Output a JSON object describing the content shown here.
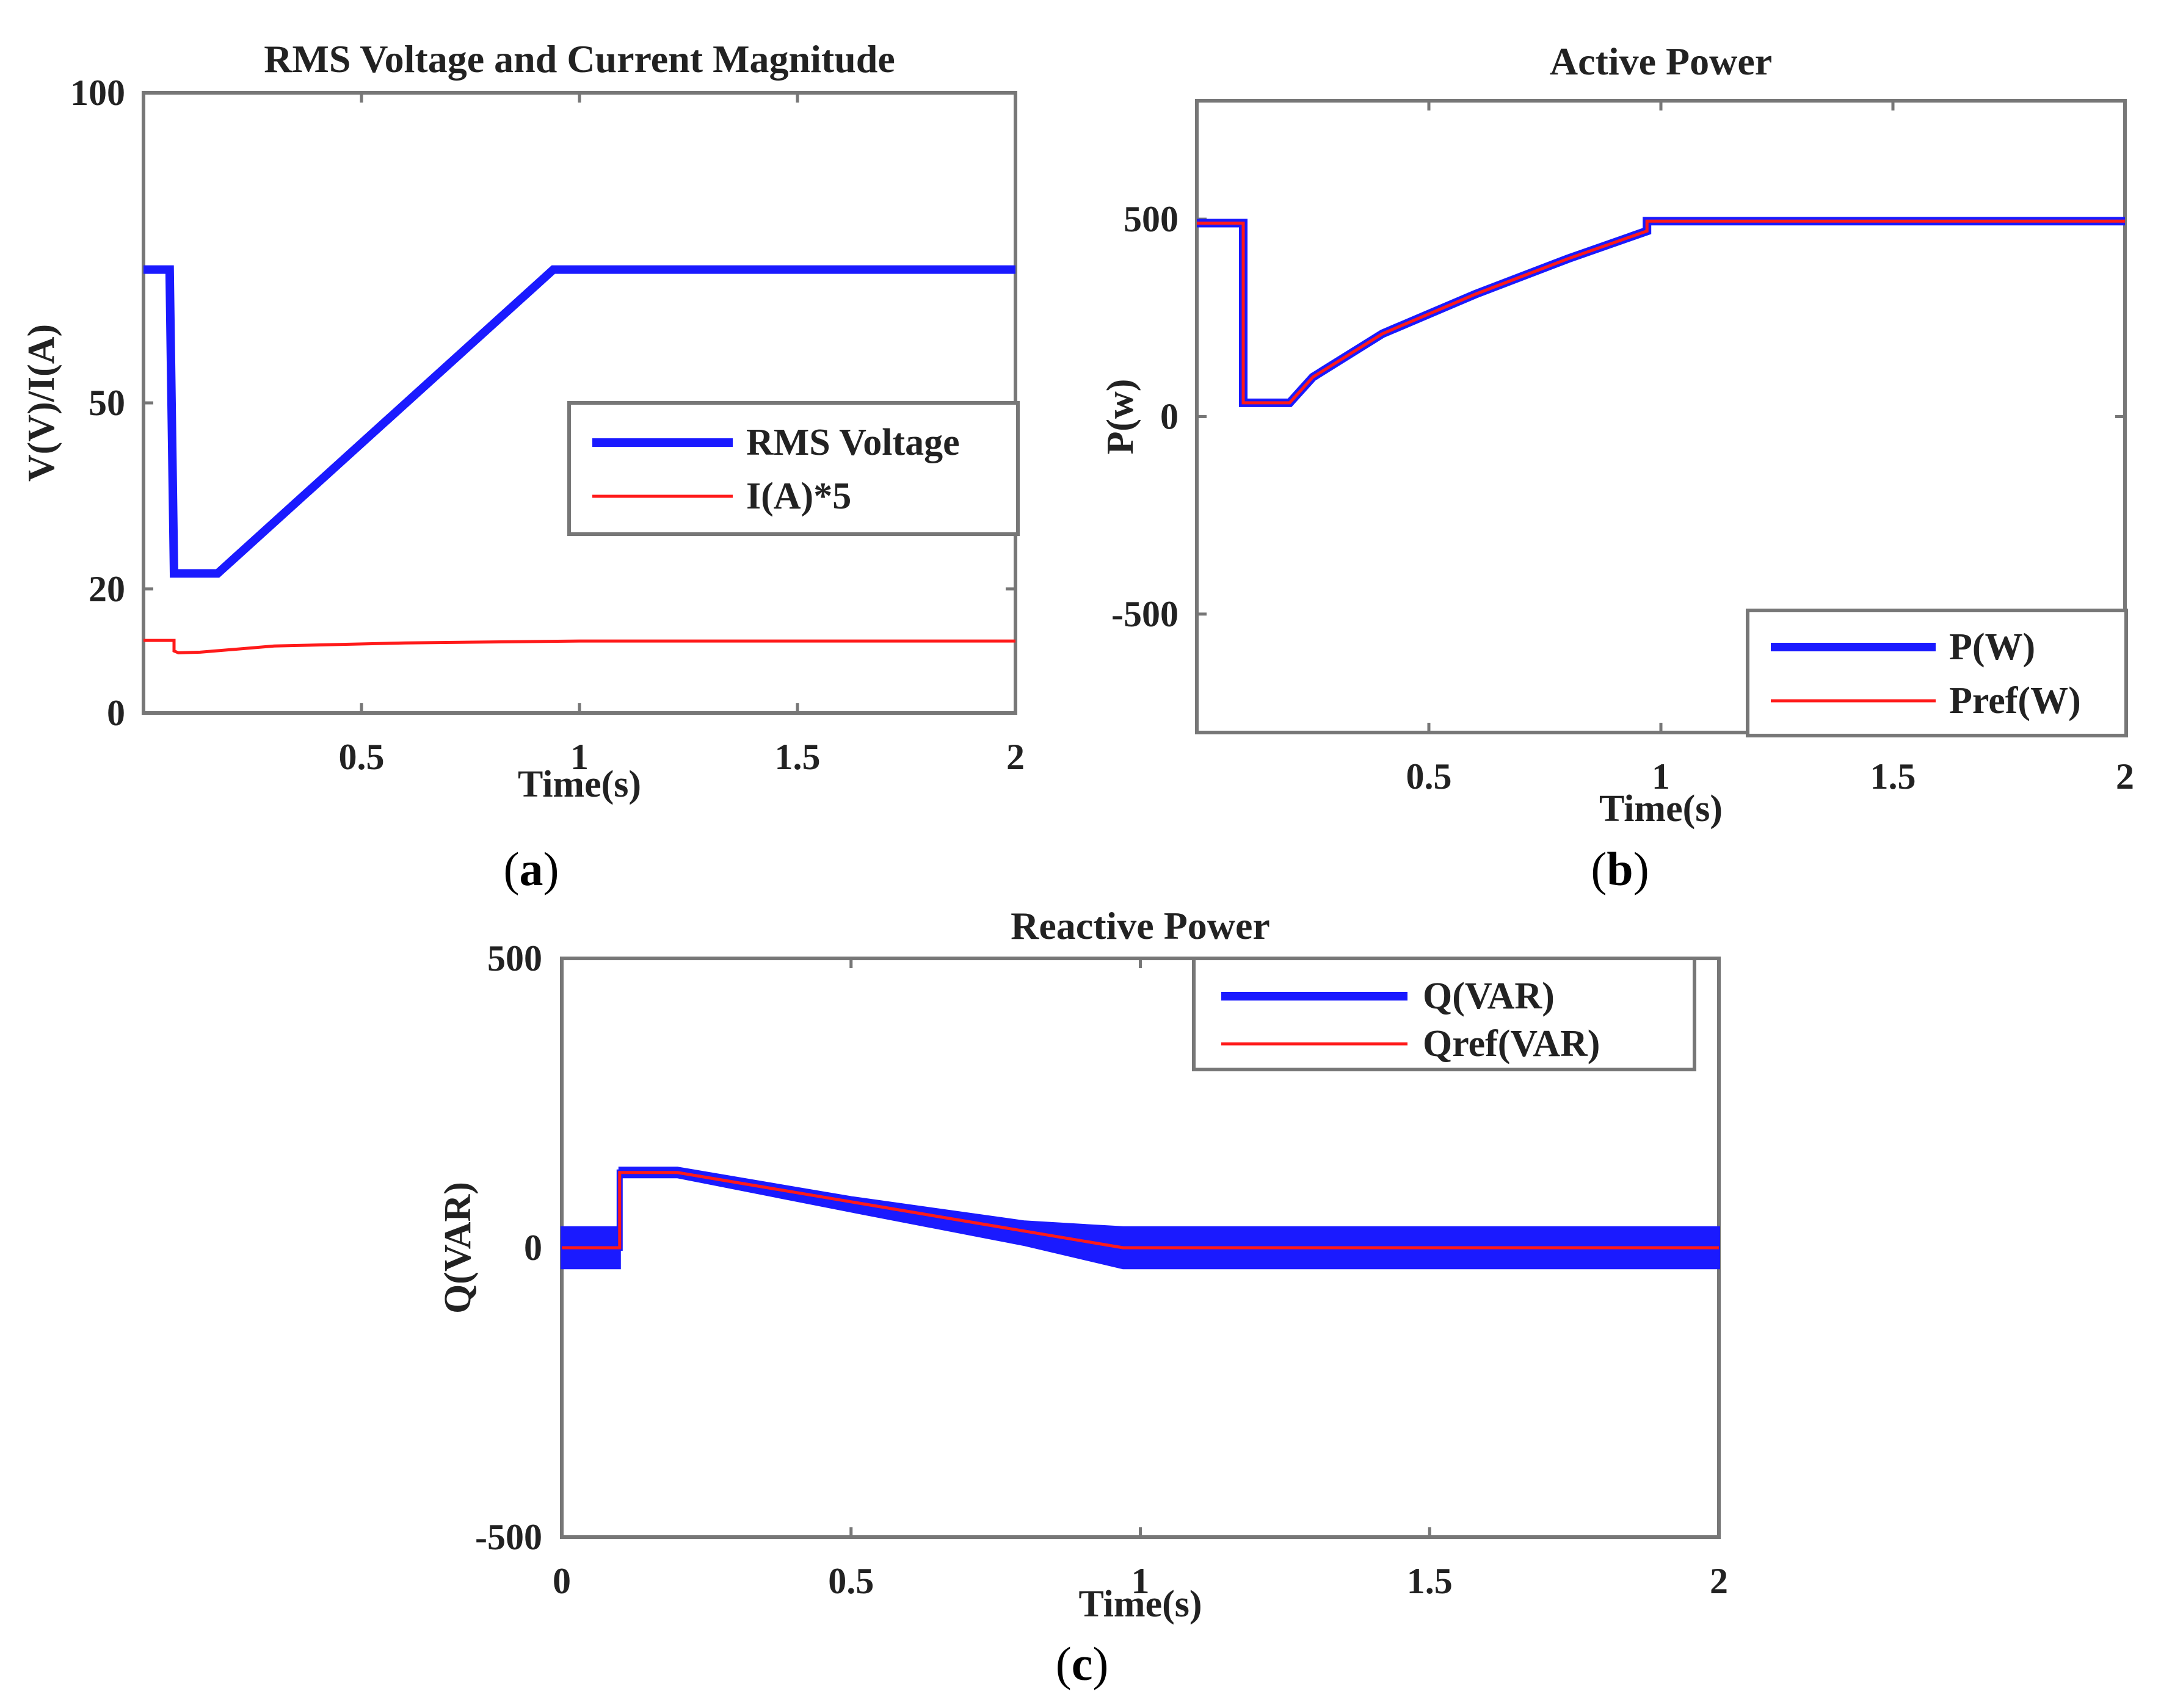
{
  "figure": {
    "captions": [
      "a",
      "b",
      "c"
    ]
  },
  "colors": {
    "blue": "#1a1aff",
    "red": "#ff1a1a",
    "axis": "#777777",
    "text": "#222222"
  },
  "chart_data": [
    {
      "id": "a",
      "type": "line",
      "title": "RMS Voltage and Current Magnitude",
      "xlabel": "Time(s)",
      "ylabel": "V(V)/I(A)",
      "xlim": [
        0,
        2
      ],
      "ylim": [
        0,
        100
      ],
      "xticks": [
        0.5,
        1,
        1.5,
        2
      ],
      "xtick_labels": [
        "0.5",
        "1",
        "1.5",
        "2"
      ],
      "yticks": [
        0,
        20,
        50,
        100
      ],
      "ytick_labels": [
        "0",
        "20",
        "50",
        "100"
      ],
      "legend": {
        "placement": "center-right",
        "entries": [
          "RMS Voltage",
          "I(A)*5"
        ]
      },
      "series": [
        {
          "name": "RMS Voltage",
          "color": "#1a1aff",
          "width": "thick",
          "x": [
            0,
            0.06,
            0.06,
            0.07,
            0.07,
            0.17,
            0.94,
            2
          ],
          "y": [
            71.5,
            71.5,
            71.5,
            22.5,
            22.5,
            22.5,
            71.5,
            71.5
          ]
        },
        {
          "name": "I(A)*5",
          "color": "#ff1a1a",
          "width": "thin",
          "x": [
            0,
            0.07,
            0.07,
            0.08,
            0.13,
            0.3,
            0.6,
            1.0,
            2
          ],
          "y": [
            11.7,
            11.7,
            10,
            9.7,
            9.8,
            10.8,
            11.3,
            11.6,
            11.6
          ]
        }
      ]
    },
    {
      "id": "b",
      "type": "line",
      "title": "Active Power",
      "xlabel": "Time(s)",
      "ylabel": "P(w)",
      "xlim": [
        0,
        2
      ],
      "ylim": [
        -800,
        800
      ],
      "xticks": [
        0.5,
        1,
        1.5,
        2
      ],
      "xtick_labels": [
        "0.5",
        "1",
        "1.5",
        "2"
      ],
      "yticks": [
        -500,
        0,
        500
      ],
      "ytick_labels": [
        "-500",
        "0",
        "500"
      ],
      "legend": {
        "placement": "bottom-right",
        "entries": [
          "P(W)",
          "Pref(W)"
        ]
      },
      "series": [
        {
          "name": "P(W)",
          "color": "#1a1aff",
          "width": "thick",
          "x": [
            0,
            0.1,
            0.1,
            0.2,
            0.25,
            0.4,
            0.6,
            0.8,
            0.97,
            0.97,
            2
          ],
          "y": [
            490,
            490,
            35,
            35,
            100,
            210,
            310,
            400,
            470,
            495,
            495
          ]
        },
        {
          "name": "Pref(W)",
          "color": "#ff1a1a",
          "width": "thin",
          "x": [
            0,
            0.1,
            0.1,
            0.2,
            0.25,
            0.4,
            0.6,
            0.8,
            0.97,
            0.97,
            2
          ],
          "y": [
            490,
            490,
            35,
            35,
            100,
            210,
            310,
            400,
            470,
            495,
            495
          ]
        }
      ]
    },
    {
      "id": "c",
      "type": "line",
      "title": "Reactive Power",
      "xlabel": "Time(s)",
      "ylabel": "Q(VAR)",
      "xlim": [
        0,
        2
      ],
      "ylim": [
        -500,
        500
      ],
      "xticks": [
        0,
        0.5,
        1,
        1.5,
        2
      ],
      "xtick_labels": [
        "0",
        "0.5",
        "1",
        "1.5",
        "2"
      ],
      "yticks": [
        -500,
        0,
        500
      ],
      "ytick_labels": [
        "-500",
        "0",
        "500"
      ],
      "legend": {
        "placement": "top-right",
        "entries": [
          "Q(VAR)",
          "Qref(VAR)"
        ]
      },
      "series": [
        {
          "name": "Q(VAR)",
          "color": "#1a1aff",
          "width": "thick-noisy",
          "x": [
            0,
            0.1,
            0.1,
            0.2,
            0.5,
            0.8,
            0.97,
            2
          ],
          "y": [
            0,
            0,
            130,
            130,
            75,
            25,
            0,
            0
          ],
          "noise_band": [
            35,
            35,
            8,
            8,
            12,
            20,
            35,
            35
          ]
        },
        {
          "name": "Qref(VAR)",
          "color": "#ff1a1a",
          "width": "thin",
          "x": [
            0,
            0.1,
            0.1,
            0.2,
            0.97,
            2
          ],
          "y": [
            0,
            0,
            130,
            130,
            0,
            0
          ]
        }
      ]
    }
  ]
}
